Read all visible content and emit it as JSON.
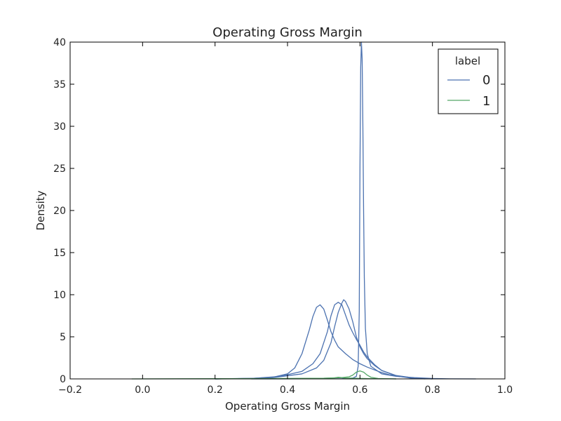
{
  "chart_data": {
    "type": "line",
    "title": "Operating Gross Margin",
    "xlabel": "Operating Gross Margin",
    "ylabel": "Density",
    "xlim": [
      -0.2,
      1.0
    ],
    "ylim": [
      0,
      40
    ],
    "xticks": [
      -0.2,
      0.0,
      0.2,
      0.4,
      0.6,
      0.8,
      1.0
    ],
    "xtick_labels": [
      "−0.2",
      "0.0",
      "0.2",
      "0.4",
      "0.6",
      "0.8",
      "1.0"
    ],
    "yticks": [
      0,
      5,
      10,
      15,
      20,
      25,
      30,
      35,
      40
    ],
    "ytick_labels": [
      "0",
      "5",
      "10",
      "15",
      "20",
      "25",
      "30",
      "35",
      "40"
    ],
    "grid": false,
    "legend": {
      "title": "label",
      "placement": "top-right",
      "entries": [
        {
          "label": "0",
          "color": "#4c72b0"
        },
        {
          "label": "1",
          "color": "#55a868"
        }
      ]
    },
    "series": [
      {
        "label": "0",
        "color": "#4c72b0",
        "x": [
          0.2,
          0.3,
          0.36,
          0.4,
          0.42,
          0.44,
          0.46,
          0.47,
          0.48,
          0.49,
          0.5,
          0.51,
          0.52,
          0.53,
          0.54,
          0.56,
          0.58,
          0.6,
          0.62,
          0.65,
          0.68,
          0.72,
          0.76,
          0.8
        ],
        "y": [
          0.0,
          0.05,
          0.2,
          0.6,
          1.3,
          3.0,
          5.8,
          7.4,
          8.5,
          8.8,
          8.3,
          7.0,
          5.6,
          4.6,
          3.8,
          3.0,
          2.3,
          1.8,
          1.4,
          0.9,
          0.5,
          0.25,
          0.05,
          0.0
        ]
      },
      {
        "label": "0",
        "color": "#4c72b0",
        "x": [
          0.2,
          0.3,
          0.38,
          0.44,
          0.47,
          0.49,
          0.51,
          0.52,
          0.53,
          0.54,
          0.55,
          0.56,
          0.57,
          0.58,
          0.59,
          0.6,
          0.61,
          0.62,
          0.64,
          0.66,
          0.7,
          0.74,
          0.78
        ],
        "y": [
          0.0,
          0.05,
          0.3,
          0.9,
          1.8,
          3.0,
          5.6,
          7.5,
          8.8,
          9.1,
          8.8,
          7.6,
          6.4,
          5.5,
          4.7,
          4.0,
          3.2,
          2.6,
          1.7,
          1.0,
          0.35,
          0.1,
          0.0
        ]
      },
      {
        "label": "0",
        "color": "#4c72b0",
        "x": [
          0.2,
          0.35,
          0.44,
          0.48,
          0.5,
          0.52,
          0.53,
          0.54,
          0.55,
          0.555,
          0.56,
          0.57,
          0.58,
          0.59,
          0.6,
          0.61,
          0.62,
          0.64,
          0.66,
          0.7,
          0.75,
          0.8
        ],
        "y": [
          0.0,
          0.1,
          0.6,
          1.3,
          2.2,
          4.3,
          6.2,
          7.9,
          9.0,
          9.4,
          9.2,
          8.3,
          6.8,
          5.0,
          3.8,
          3.0,
          2.4,
          1.6,
          1.0,
          0.4,
          0.1,
          0.0
        ]
      },
      {
        "label": "0",
        "color": "#4c72b0",
        "x": [
          0.3,
          0.55,
          0.58,
          0.59,
          0.595,
          0.598,
          0.6,
          0.602,
          0.604,
          0.606,
          0.608,
          0.61,
          0.612,
          0.615,
          0.62,
          0.63,
          0.66,
          0.7,
          0.75,
          0.8,
          0.85,
          0.92
        ],
        "y": [
          0.0,
          0.02,
          0.1,
          0.3,
          1.5,
          8.0,
          25.0,
          37.0,
          40.0,
          38.0,
          30.0,
          20.0,
          12.0,
          6.0,
          3.0,
          1.5,
          0.6,
          0.3,
          0.15,
          0.05,
          0.01,
          0.0
        ]
      },
      {
        "label": "1",
        "color": "#55a868",
        "x": [
          -0.03,
          0.2,
          0.4,
          0.5,
          0.55,
          0.57,
          0.58,
          0.59,
          0.6,
          0.61,
          0.62,
          0.63,
          0.65,
          0.7
        ],
        "y": [
          0.0,
          0.03,
          0.05,
          0.08,
          0.15,
          0.25,
          0.45,
          0.8,
          0.95,
          0.8,
          0.45,
          0.2,
          0.05,
          0.0
        ]
      },
      {
        "label": "1",
        "color": "#55a868",
        "x": [
          0.2,
          0.4,
          0.5,
          0.53,
          0.54,
          0.55,
          0.56,
          0.58,
          0.62,
          0.7
        ],
        "y": [
          0.0,
          0.04,
          0.07,
          0.12,
          0.2,
          0.15,
          0.1,
          0.08,
          0.04,
          0.0
        ]
      }
    ]
  }
}
